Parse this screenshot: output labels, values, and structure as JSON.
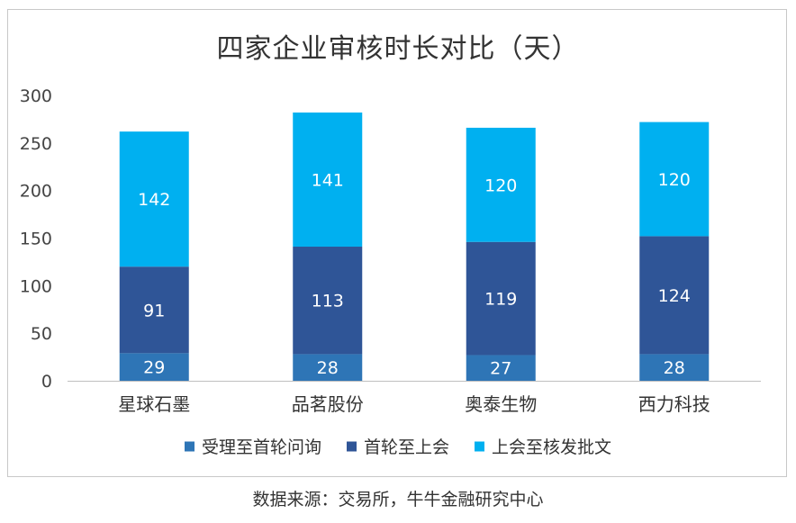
{
  "chart_data": {
    "type": "bar",
    "stacked": true,
    "title": "四家企业审核时长对比（天）",
    "categories": [
      "星球石墨",
      "品茗股份",
      "奥泰生物",
      "西力科技"
    ],
    "series": [
      {
        "name": "受理至首轮问询",
        "values": [
          29,
          28,
          27,
          28
        ],
        "color": "#2e75b6"
      },
      {
        "name": "首轮至上会",
        "values": [
          91,
          113,
          119,
          124
        ],
        "color": "#2f5597"
      },
      {
        "name": "上会至核发批文",
        "values": [
          142,
          141,
          120,
          120
        ],
        "color": "#00b0f0"
      }
    ],
    "ylim": [
      0,
      300
    ],
    "yticks": [
      0,
      50,
      100,
      150,
      200,
      250,
      300
    ],
    "grid": false,
    "legend": "bottom"
  },
  "source_note": "数据来源：交易所，牛牛金融研究中心"
}
